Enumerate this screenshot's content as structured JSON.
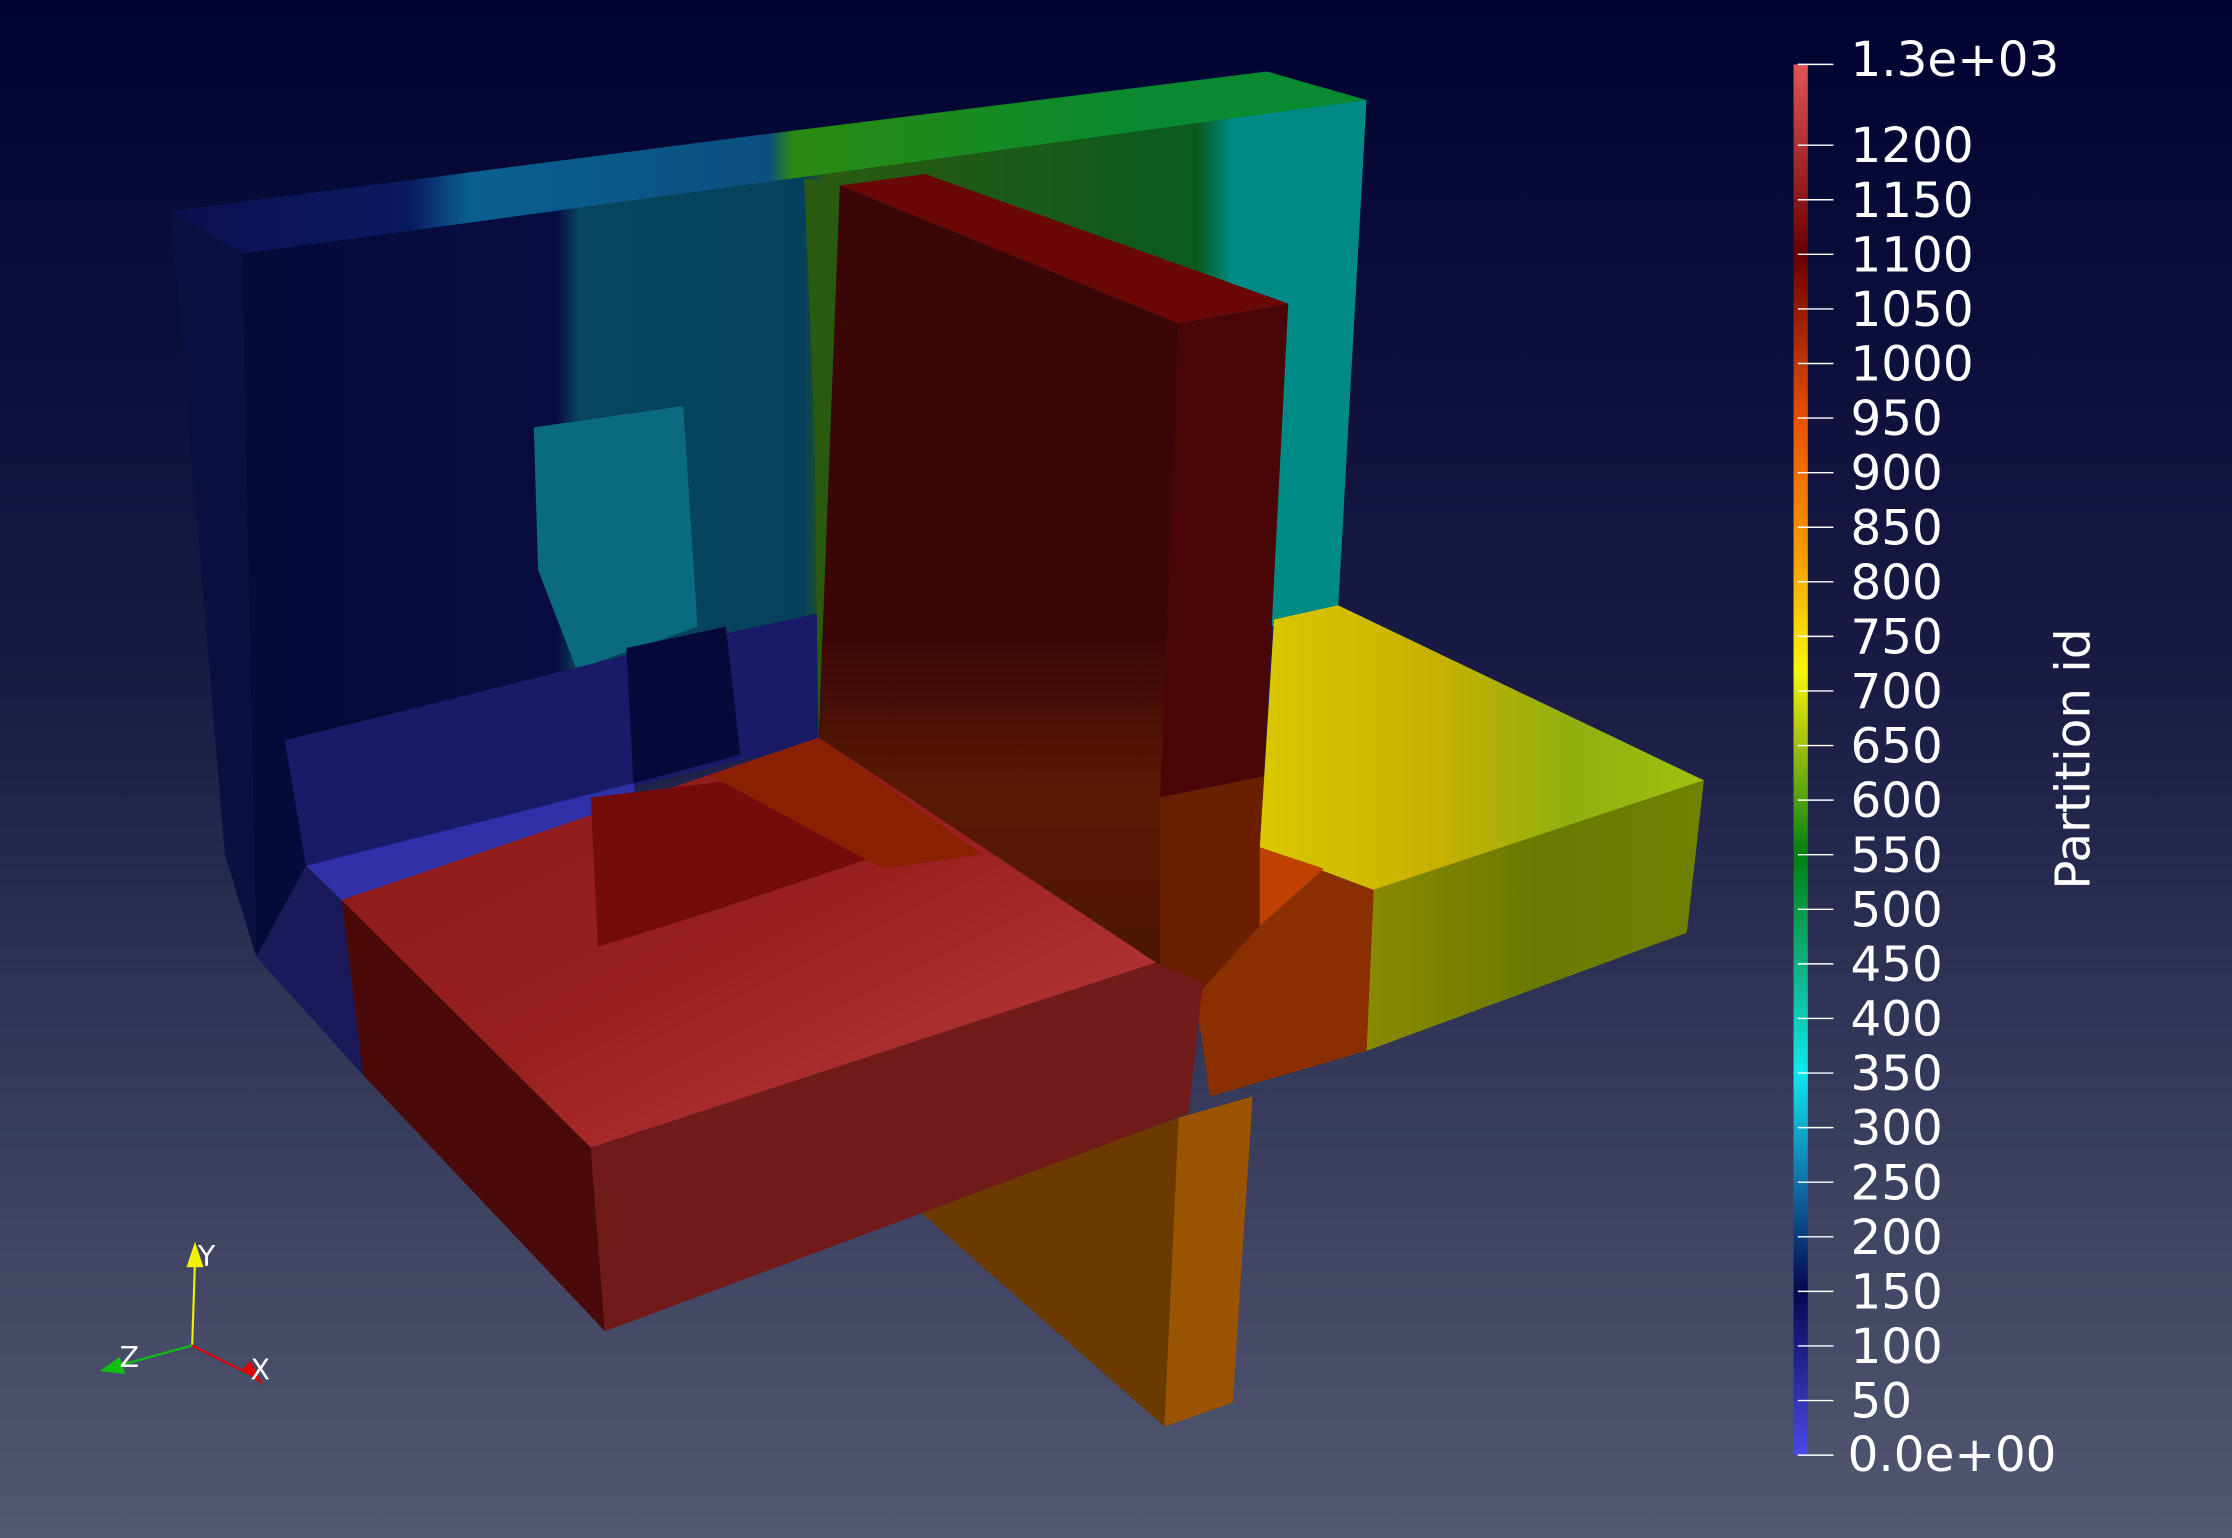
{
  "scalar_bar": {
    "title": "Partition id",
    "range": [
      0,
      1274
    ],
    "max_label": "1.3e+03",
    "min_label": "0.0e+00",
    "ticks": [
      {
        "value": 50,
        "label": "50"
      },
      {
        "value": 100,
        "label": "100"
      },
      {
        "value": 150,
        "label": "150"
      },
      {
        "value": 200,
        "label": "200"
      },
      {
        "value": 250,
        "label": "250"
      },
      {
        "value": 300,
        "label": "300"
      },
      {
        "value": 350,
        "label": "350"
      },
      {
        "value": 400,
        "label": "400"
      },
      {
        "value": 450,
        "label": "450"
      },
      {
        "value": 500,
        "label": "500"
      },
      {
        "value": 550,
        "label": "550"
      },
      {
        "value": 600,
        "label": "600"
      },
      {
        "value": 650,
        "label": "650"
      },
      {
        "value": 700,
        "label": "700"
      },
      {
        "value": 750,
        "label": "750"
      },
      {
        "value": 800,
        "label": "800"
      },
      {
        "value": 850,
        "label": "850"
      },
      {
        "value": 900,
        "label": "900"
      },
      {
        "value": 950,
        "label": "950"
      },
      {
        "value": 1000,
        "label": "1000"
      },
      {
        "value": 1050,
        "label": "1050"
      },
      {
        "value": 1100,
        "label": "1100"
      },
      {
        "value": 1150,
        "label": "1150"
      },
      {
        "value": 1200,
        "label": "1200"
      }
    ],
    "colormap": [
      {
        "value": 0,
        "color": "#4a4ae6"
      },
      {
        "value": 150,
        "color": "#050850"
      },
      {
        "value": 250,
        "color": "#1070a8"
      },
      {
        "value": 350,
        "color": "#10e8f0"
      },
      {
        "value": 450,
        "color": "#10b080"
      },
      {
        "value": 550,
        "color": "#008010"
      },
      {
        "value": 650,
        "color": "#a0c010"
      },
      {
        "value": 720,
        "color": "#f8f800"
      },
      {
        "value": 820,
        "color": "#f8a000"
      },
      {
        "value": 950,
        "color": "#e85000"
      },
      {
        "value": 1100,
        "color": "#680000"
      },
      {
        "value": 1274,
        "color": "#e05555"
      }
    ]
  },
  "orientation_axes": {
    "x_label": "X",
    "y_label": "Y",
    "z_label": "Z",
    "x_color": "#e00000",
    "y_color": "#f0f000",
    "z_color": "#10c010"
  }
}
